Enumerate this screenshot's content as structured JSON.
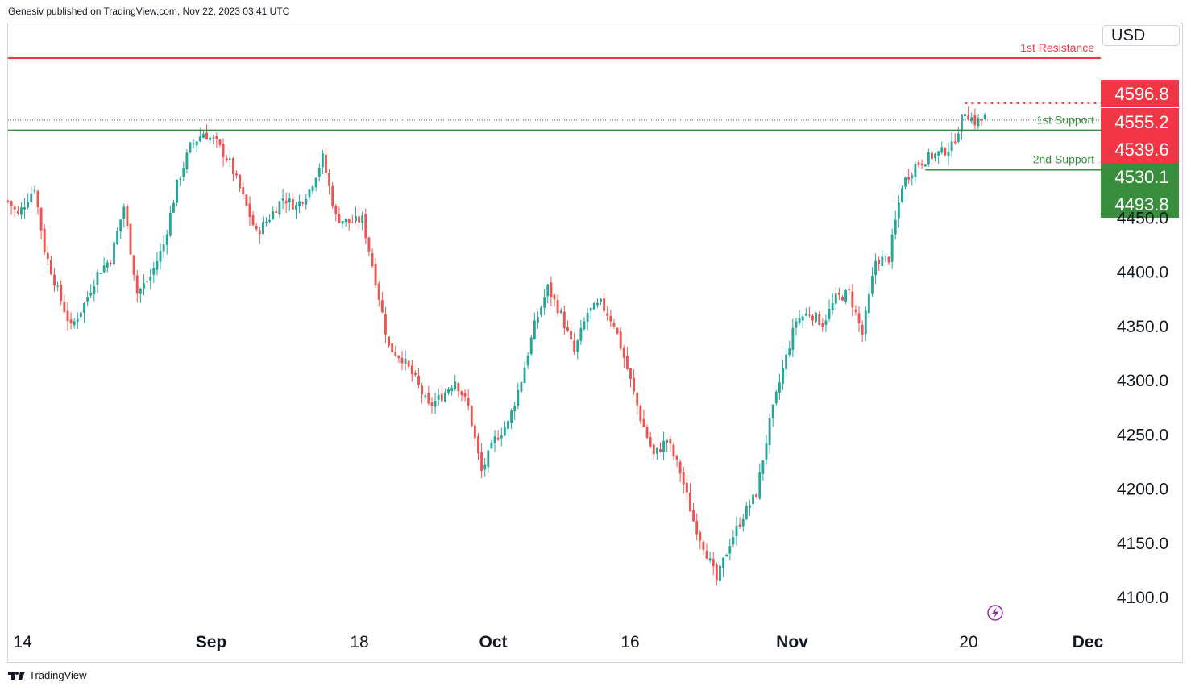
{
  "header": {
    "published": "Genesiv published on TradingView.com, Nov 22, 2023 03:41 UTC"
  },
  "currency": "USD",
  "footer": {
    "brand": "TradingView",
    "logo_icon": "tradingview-logo-icon"
  },
  "colors": {
    "resistance": "#f23645",
    "support": "#388e3c",
    "up": "#26a69a",
    "down": "#ef5350",
    "grid": "#e0e3eb"
  },
  "chart_data": {
    "type": "candlestick",
    "y_axis": {
      "ticks": [
        4100.0,
        4150.0,
        4200.0,
        4250.0,
        4300.0,
        4350.0,
        4400.0,
        4450.0
      ],
      "ylim": [
        4074,
        4628
      ]
    },
    "x_axis": {
      "labels": [
        "14",
        "Sep",
        "18",
        "Oct",
        "16",
        "Nov",
        "20",
        "Dec"
      ]
    },
    "levels": [
      {
        "name": "1st Resistance",
        "value": 4596.8,
        "label": "4596.8",
        "color": "#f23645",
        "style": "solid",
        "span": "full"
      },
      {
        "name": "",
        "value": 4555.2,
        "label": "4555.2",
        "color": "#f23645",
        "style": "dashed",
        "span": "recent"
      },
      {
        "name": "",
        "value": 4539.6,
        "label": "4539.6",
        "color": "#f23645",
        "style": "dotted",
        "span": "full"
      },
      {
        "name": "1st Support",
        "value": 4530.1,
        "label": "4530.1",
        "color": "#388e3c",
        "style": "solid",
        "span": "full"
      },
      {
        "name": "2nd Support",
        "value": 4493.8,
        "label": "4493.8",
        "color": "#388e3c",
        "style": "solid",
        "span": "recent"
      }
    ],
    "price_path": [
      [
        0,
        4465
      ],
      [
        3,
        4452
      ],
      [
        8,
        4478
      ],
      [
        11,
        4420
      ],
      [
        15,
        4382
      ],
      [
        19,
        4348
      ],
      [
        23,
        4370
      ],
      [
        27,
        4398
      ],
      [
        31,
        4412
      ],
      [
        35,
        4460
      ],
      [
        39,
        4380
      ],
      [
        43,
        4395
      ],
      [
        47,
        4425
      ],
      [
        51,
        4480
      ],
      [
        55,
        4515
      ],
      [
        59,
        4528
      ],
      [
        63,
        4518
      ],
      [
        67,
        4500
      ],
      [
        71,
        4468
      ],
      [
        75,
        4435
      ],
      [
        79,
        4450
      ],
      [
        83,
        4468
      ],
      [
        87,
        4460
      ],
      [
        91,
        4475
      ],
      [
        95,
        4505
      ],
      [
        99,
        4450
      ],
      [
        103,
        4445
      ],
      [
        107,
        4448
      ],
      [
        111,
        4392
      ],
      [
        115,
        4330
      ],
      [
        119,
        4320
      ],
      [
        123,
        4300
      ],
      [
        127,
        4275
      ],
      [
        131,
        4285
      ],
      [
        135,
        4300
      ],
      [
        139,
        4275
      ],
      [
        143,
        4215
      ],
      [
        147,
        4245
      ],
      [
        151,
        4260
      ],
      [
        155,
        4300
      ],
      [
        159,
        4350
      ],
      [
        163,
        4385
      ],
      [
        167,
        4360
      ],
      [
        171,
        4325
      ],
      [
        175,
        4362
      ],
      [
        179,
        4370
      ],
      [
        183,
        4352
      ],
      [
        187,
        4310
      ],
      [
        191,
        4265
      ],
      [
        195,
        4230
      ],
      [
        199,
        4245
      ],
      [
        203,
        4215
      ],
      [
        207,
        4170
      ],
      [
        211,
        4140
      ],
      [
        214,
        4115
      ],
      [
        218,
        4150
      ],
      [
        222,
        4175
      ],
      [
        226,
        4195
      ],
      [
        230,
        4260
      ],
      [
        234,
        4310
      ],
      [
        238,
        4355
      ],
      [
        242,
        4362
      ],
      [
        246,
        4352
      ],
      [
        250,
        4375
      ],
      [
        254,
        4380
      ],
      [
        258,
        4342
      ],
      [
        262,
        4410
      ],
      [
        266,
        4412
      ],
      [
        270,
        4480
      ],
      [
        274,
        4498
      ],
      [
        278,
        4505
      ],
      [
        282,
        4510
      ],
      [
        285,
        4515
      ],
      [
        289,
        4548
      ],
      [
        292,
        4538
      ],
      [
        295,
        4542
      ]
    ],
    "x_range": [
      0,
      330
    ]
  }
}
